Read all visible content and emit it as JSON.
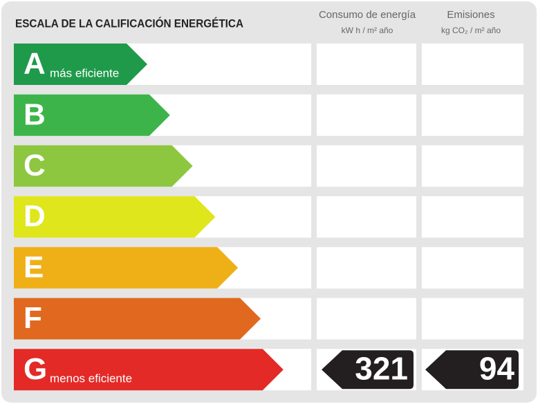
{
  "header": {
    "title": "ESCALA DE LA CALIFICACIÓN ENERGÉTICA",
    "columns": [
      {
        "title": "Consumo de energía",
        "unit": "kW h / m² año"
      },
      {
        "title": "Emisiones",
        "unit": "kg CO₂ / m² año"
      }
    ]
  },
  "rows": [
    {
      "letter": "A",
      "note": "más eficiente",
      "color": "#1f9a4b"
    },
    {
      "letter": "B",
      "color": "#3cb44a"
    },
    {
      "letter": "C",
      "color": "#8cc73f"
    },
    {
      "letter": "D",
      "color": "#dfe61b"
    },
    {
      "letter": "E",
      "color": "#efb017"
    },
    {
      "letter": "F",
      "color": "#e0691f"
    },
    {
      "letter": "G",
      "note": "menos eficiente",
      "color": "#e32a27",
      "consumption": 321,
      "emissions": 94
    }
  ]
}
